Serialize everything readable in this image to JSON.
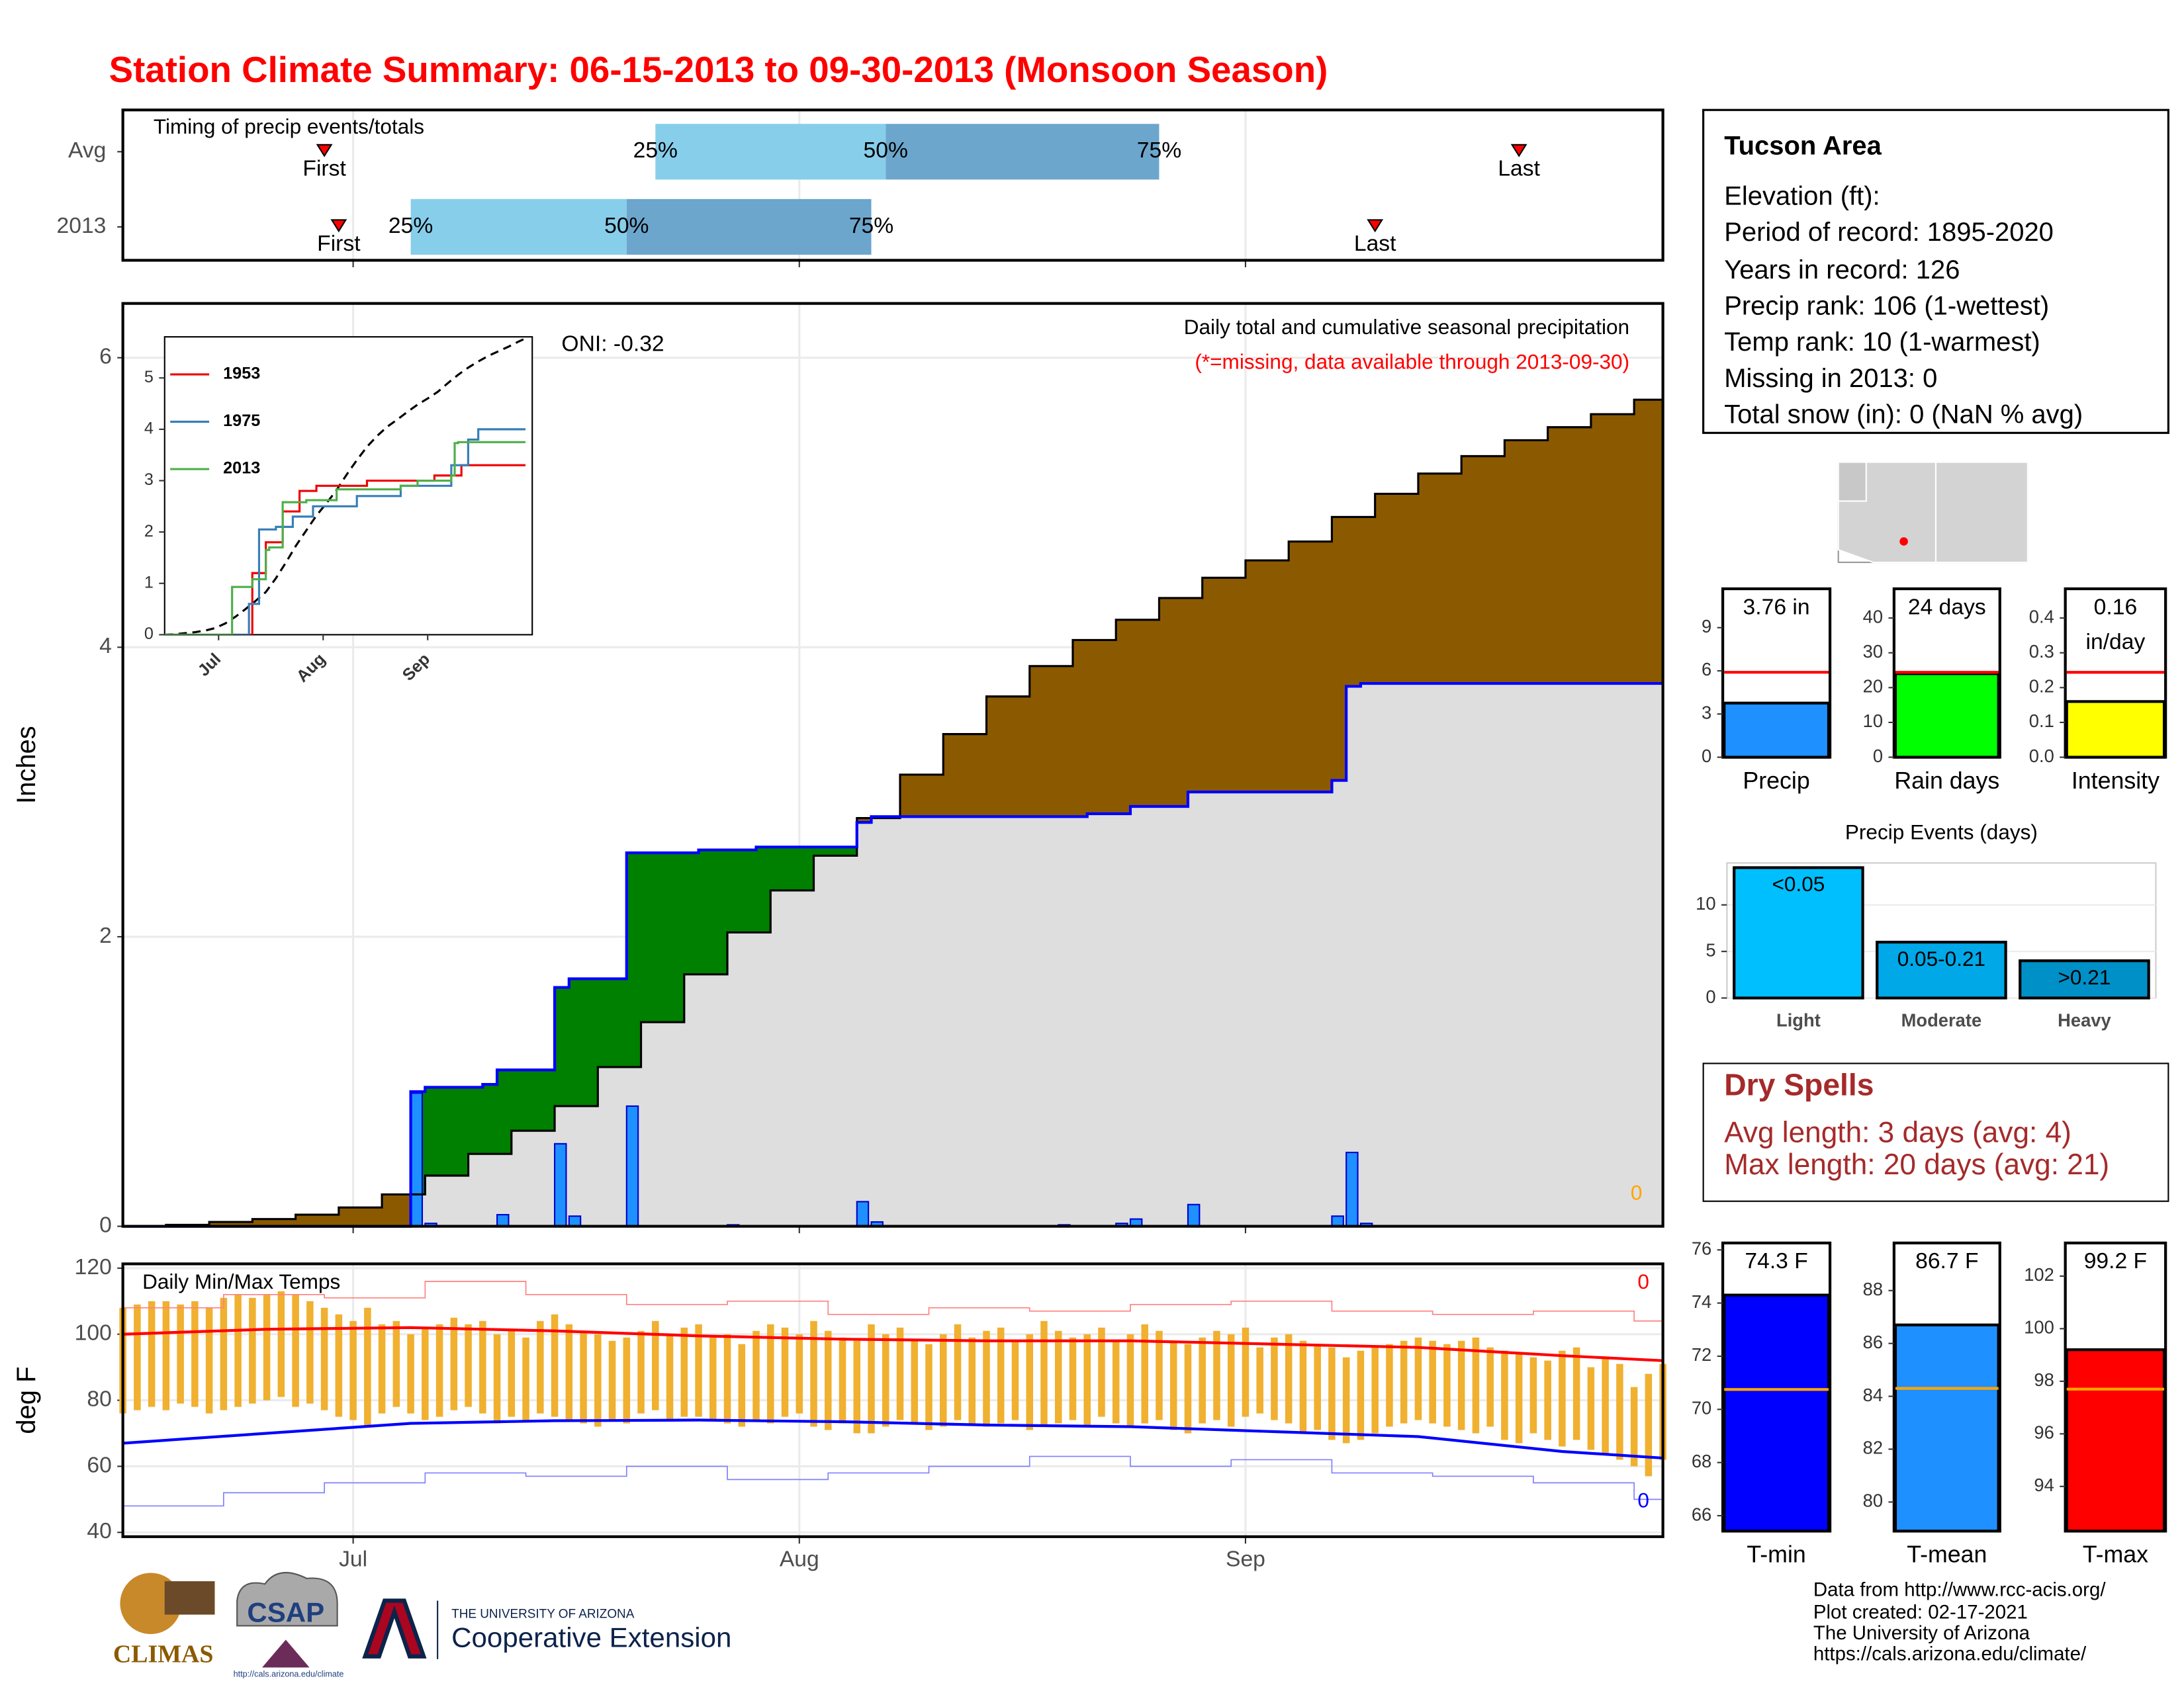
{
  "title": "Station Climate Summary: 06-15-2013 to 09-30-2013 (Monsoon Season)",
  "info": {
    "title": "Tucson Area",
    "lines": [
      "Elevation (ft):",
      "Period of record: 1895-2020",
      "Years in record: 126",
      "Precip rank: 106 (1-wettest)",
      "Temp rank: 10 (1-warmest)",
      "Missing in 2013: 0",
      "Total snow (in): 0 (NaN % avg)"
    ]
  },
  "dry_spells": {
    "title": "Dry Spells",
    "lines": [
      "Avg length: 3 days (avg: 4)",
      "Max length: 20 days (avg: 21)"
    ]
  },
  "footer": [
    "Data from http://www.rcc-acis.org/",
    "Plot created: 02-17-2021",
    "The University of Arizona",
    "https://cals.arizona.edu/climate/"
  ],
  "logos": {
    "climas": "CLIMAS",
    "csap": "CSAP",
    "csap_url": "http://cals.arizona.edu/climate",
    "university": "THE UNIVERSITY OF ARIZONA",
    "extension": "Cooperative Extension"
  },
  "chart_data": [
    {
      "type": "timing",
      "title": "Timing of precip events/totals",
      "categories": [
        "Avg",
        "2013"
      ],
      "xlim": [
        0,
        107
      ],
      "quartile_labels": [
        "25%",
        "50%",
        "75%"
      ],
      "first_label": "First",
      "last_label": "Last",
      "colors": [
        "#87ceeb",
        "#6ca6cd"
      ],
      "marker_color": "#ff0000",
      "rows": [
        {
          "quartiles": [
            37,
            53,
            72
          ],
          "first": 14,
          "last": 97
        },
        {
          "quartiles": [
            20,
            35,
            52
          ],
          "first": 15,
          "last": 87
        }
      ]
    },
    {
      "type": "precip-cumulative",
      "title": "Daily total and cumulative seasonal precipitation",
      "subtitle": "(*=missing, data available through 2013-09-30)",
      "subtitle_color": "#ff0000",
      "annotations": [
        "ONI: -0.32",
        "0"
      ],
      "annotation_colors": [
        "#000000",
        "#ffa500"
      ],
      "y_label": "Inches",
      "xlim": [
        0,
        107
      ],
      "ylim": [
        0,
        6.375
      ],
      "yticks": [
        0,
        2,
        4,
        6
      ],
      "grid": true,
      "surplus_color": "#008000",
      "deficit_color": "#8b5a00",
      "base_color": "#dedede",
      "series": [
        {
          "color": "#000000",
          "x": [
            0,
            3,
            6,
            9,
            12,
            15,
            18,
            21,
            24,
            27,
            30,
            33,
            36,
            39,
            42,
            45,
            48,
            51,
            54,
            57,
            60,
            63,
            66,
            69,
            72,
            75,
            78,
            81,
            84,
            87,
            90,
            93,
            96,
            99,
            102,
            105,
            107
          ],
          "values": [
            0,
            0.01,
            0.03,
            0.05,
            0.08,
            0.13,
            0.22,
            0.35,
            0.5,
            0.66,
            0.83,
            1.1,
            1.41,
            1.74,
            2.03,
            2.32,
            2.56,
            2.82,
            3.12,
            3.4,
            3.66,
            3.87,
            4.05,
            4.19,
            4.34,
            4.48,
            4.6,
            4.73,
            4.9,
            5.06,
            5.2,
            5.32,
            5.43,
            5.52,
            5.61,
            5.71,
            5.77
          ]
        },
        {
          "color": "#0000ff",
          "x": [
            0,
            20,
            21,
            25,
            26,
            30,
            31,
            35,
            40,
            44,
            51,
            52,
            67,
            70,
            74,
            84,
            85,
            86
          ],
          "values": [
            0,
            0.93,
            0.96,
            0.98,
            1.08,
            1.65,
            1.71,
            2.58,
            2.6,
            2.62,
            2.79,
            2.83,
            2.85,
            2.9,
            3.0,
            3.08,
            3.73,
            3.75
          ]
        },
        {
          "color": "#1e90ff",
          "x": [
            20,
            21,
            26,
            30,
            31,
            35,
            42,
            51,
            52,
            65,
            69,
            70,
            74,
            84,
            85,
            86
          ],
          "values": [
            0.92,
            0.02,
            0.08,
            0.57,
            0.07,
            0.83,
            0.01,
            0.17,
            0.03,
            0.01,
            0.02,
            0.05,
            0.15,
            0.07,
            0.51,
            0.02
          ]
        }
      ]
    },
    {
      "type": "temperature",
      "title": "Daily Min/Max Temps",
      "y_label": "deg F",
      "annotations": [
        "0",
        "0"
      ],
      "annotation_colors": [
        "#ff0000",
        "#0000ff"
      ],
      "xlim": [
        0,
        107
      ],
      "ylim": [
        38.7,
        121.3
      ],
      "yticks": [
        40,
        60,
        80,
        100,
        120
      ],
      "grid": true,
      "xticks": [
        {
          "value": 16,
          "label": "Jul"
        },
        {
          "value": 47,
          "label": "Aug"
        },
        {
          "value": 78,
          "label": "Sep"
        }
      ],
      "x": [
        0,
        1,
        2,
        3,
        4,
        5,
        6,
        7,
        8,
        9,
        10,
        11,
        12,
        13,
        14,
        15,
        16,
        17,
        18,
        19,
        20,
        21,
        22,
        23,
        24,
        25,
        26,
        27,
        28,
        29,
        30,
        31,
        32,
        33,
        34,
        35,
        36,
        37,
        38,
        39,
        40,
        41,
        42,
        43,
        44,
        45,
        46,
        47,
        48,
        49,
        50,
        51,
        52,
        53,
        54,
        55,
        56,
        57,
        58,
        59,
        60,
        61,
        62,
        63,
        64,
        65,
        66,
        67,
        68,
        69,
        70,
        71,
        72,
        73,
        74,
        75,
        76,
        77,
        78,
        79,
        80,
        81,
        82,
        83,
        84,
        85,
        86,
        87,
        88,
        89,
        90,
        91,
        92,
        93,
        94,
        95,
        96,
        97,
        98,
        99,
        100,
        101,
        102,
        103,
        104,
        105,
        106,
        107
      ],
      "series": [
        {
          "color": "#f0b030",
          "values": [
            108,
            109,
            110,
            110,
            109,
            110,
            108,
            111,
            112,
            111,
            112,
            113,
            112,
            110,
            108,
            106,
            104,
            108,
            103,
            104,
            100,
            102,
            103,
            105,
            103,
            104,
            100,
            101,
            99,
            104,
            106,
            103,
            101,
            100,
            98,
            99,
            101,
            104,
            100,
            102,
            103,
            99,
            100,
            97,
            101,
            103,
            102,
            100,
            104,
            101,
            99,
            98,
            103,
            100,
            102,
            98,
            97,
            100,
            103,
            99,
            101,
            102,
            98,
            100,
            104,
            101,
            99,
            100,
            102,
            98,
            100,
            103,
            101,
            98,
            97,
            99,
            101,
            100,
            102,
            96,
            99,
            100,
            98,
            97,
            96,
            93,
            95,
            96,
            97,
            98,
            99,
            98,
            97,
            98,
            99,
            96,
            95,
            94,
            93,
            92,
            95,
            96,
            90,
            93,
            91,
            84,
            88,
            91
          ]
        },
        {
          "color": "#f0b030",
          "values": [
            76,
            77,
            78,
            77,
            79,
            78,
            76,
            77,
            78,
            79,
            80,
            81,
            78,
            79,
            77,
            75,
            74,
            72,
            76,
            78,
            76,
            74,
            75,
            77,
            78,
            76,
            73,
            75,
            74,
            76,
            75,
            74,
            73,
            72,
            74,
            73,
            76,
            77,
            74,
            75,
            75,
            74,
            73,
            72,
            74,
            73,
            75,
            76,
            72,
            71,
            73,
            70,
            70,
            72,
            74,
            73,
            71,
            72,
            74,
            73,
            72,
            73,
            74,
            71,
            72,
            73,
            74,
            72,
            75,
            73,
            72,
            73,
            74,
            71,
            70,
            73,
            74,
            72,
            75,
            76,
            74,
            73,
            70,
            71,
            68,
            67,
            68,
            70,
            72,
            73,
            74,
            73,
            72,
            71,
            70,
            72,
            68,
            67,
            70,
            68,
            66,
            68,
            65,
            64,
            62,
            60,
            57,
            62
          ]
        },
        {
          "color": "#ff0000",
          "width": 2,
          "x": [
            0,
            10,
            20,
            30,
            40,
            50,
            60,
            70,
            80,
            90,
            100,
            107
          ],
          "values": [
            100,
            101.5,
            102,
            101,
            99.5,
            98.5,
            98,
            98,
            97,
            96,
            93.5,
            92
          ]
        },
        {
          "color": "#0000ff",
          "width": 2,
          "x": [
            0,
            10,
            20,
            30,
            40,
            50,
            60,
            70,
            80,
            90,
            100,
            107
          ],
          "values": [
            67,
            70,
            73,
            73.8,
            74,
            73.5,
            72.5,
            72,
            70.5,
            69,
            64.5,
            62.5
          ]
        },
        {
          "color": "#ff8080",
          "width": 0.8,
          "step": true,
          "x": [
            0,
            7,
            14,
            21,
            28,
            35,
            42,
            49,
            56,
            63,
            70,
            77,
            84,
            91,
            98,
            105,
            107
          ],
          "values": [
            108,
            112,
            111,
            116,
            112,
            109,
            110,
            106,
            108,
            107,
            109,
            110,
            107,
            106,
            107,
            104,
            103
          ]
        },
        {
          "color": "#8080ff",
          "width": 0.8,
          "step": true,
          "x": [
            0,
            7,
            14,
            21,
            28,
            35,
            42,
            49,
            56,
            63,
            70,
            77,
            84,
            91,
            98,
            105,
            107
          ],
          "values": [
            48,
            52,
            55,
            58,
            57,
            60,
            56,
            58,
            60,
            63,
            60,
            62,
            58,
            57,
            55,
            50,
            46
          ]
        }
      ]
    },
    {
      "type": "inset-line",
      "xlim": [
        0,
        109
      ],
      "ylim": [
        0,
        5.8
      ],
      "yticks": [
        0,
        1,
        2,
        3,
        4,
        5
      ],
      "series": [
        {
          "name": "1953",
          "color": "#ee0000",
          "x": [
            0,
            25,
            26,
            30,
            35,
            40,
            45,
            60,
            80,
            88
          ],
          "values": [
            0,
            0,
            1.2,
            1.8,
            2.4,
            2.8,
            2.9,
            3.0,
            3.1,
            3.3
          ]
        },
        {
          "name": "1975",
          "color": "#377eb8",
          "x": [
            0,
            24,
            25,
            28,
            33,
            38,
            44,
            57,
            70,
            85,
            90,
            93
          ],
          "values": [
            0,
            0,
            0.6,
            2.05,
            2.1,
            2.3,
            2.5,
            2.7,
            2.9,
            3.3,
            3.8,
            4.0
          ]
        },
        {
          "name": "2013",
          "color": "#4daf4a",
          "x": [
            0,
            20,
            26,
            30,
            31,
            35,
            42,
            51,
            70,
            75,
            85,
            86,
            87
          ],
          "values": [
            0,
            0.93,
            1.08,
            1.65,
            1.7,
            2.58,
            2.62,
            2.83,
            2.9,
            3.0,
            3.1,
            3.73,
            3.75
          ]
        }
      ]
    },
    {
      "type": "single-bar",
      "label": "Precip",
      "value": 3.76,
      "value_label": [
        "3.76 in"
      ],
      "average": 5.9,
      "ylim": [
        0,
        11.7
      ],
      "yticks": [
        0,
        3,
        6,
        9
      ],
      "color": "#1e90ff",
      "avg_color": "#ff0000"
    },
    {
      "type": "single-bar",
      "label": "Rain days",
      "value": 24,
      "value_label": [
        "24 days"
      ],
      "average": 24.4,
      "ylim": [
        0,
        48.4
      ],
      "yticks": [
        0,
        10,
        20,
        30,
        40
      ],
      "color": "#00ff00",
      "avg_color": "#ff0000"
    },
    {
      "type": "single-bar",
      "label": "Intensity",
      "value": 0.16,
      "value_label": [
        "0.16",
        "in/day"
      ],
      "average": 0.244,
      "ylim": [
        0,
        0.484
      ],
      "yticks": [
        {
          "value": 0,
          "label": "0.0"
        },
        0.1,
        0.2,
        0.3,
        0.4
      ],
      "color": "#ffff00",
      "avg_color": "#ff0000"
    },
    {
      "type": "bar",
      "title": "Precip Events (days)",
      "categories": [
        "Light",
        "Moderate",
        "Heavy"
      ],
      "values": [
        14,
        6,
        4
      ],
      "bar_labels": [
        "<0.05",
        "0.05-0.21",
        ">0.21"
      ],
      "colors": [
        "#00bfff",
        "#00a8e8",
        "#0090c8"
      ],
      "ylim": [
        0,
        14.5
      ],
      "yticks": [
        0,
        5,
        10
      ],
      "grid": true
    },
    {
      "type": "single-bar",
      "label": "T-min",
      "value": 74.3,
      "value_label": [
        "74.3 F"
      ],
      "average": 70.75,
      "ylim": [
        65.42,
        76.26
      ],
      "yticks": [
        66,
        68,
        70,
        72,
        74,
        76
      ],
      "color": "#0000ff",
      "avg_color": "#ffa500"
    },
    {
      "type": "single-bar",
      "label": "T-mean",
      "value": 86.7,
      "value_label": [
        "86.7 F"
      ],
      "average": 84.3,
      "ylim": [
        78.9,
        89.8
      ],
      "yticks": [
        80,
        82,
        84,
        86,
        88
      ],
      "color": "#1e90ff",
      "avg_color": "#ffa500"
    },
    {
      "type": "single-bar",
      "label": "T-max",
      "value": 99.2,
      "value_label": [
        "99.2 F"
      ],
      "average": 97.7,
      "ylim": [
        92.3,
        103.26
      ],
      "yticks": [
        94,
        96,
        98,
        100,
        102
      ],
      "color": "#ff0000",
      "avg_color": "#ffa500"
    }
  ]
}
